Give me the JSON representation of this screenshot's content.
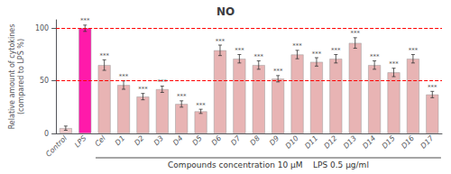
{
  "chart_data": {
    "type": "bar",
    "title": "NO",
    "xlabel": "Compounds concentration 10 μM    LPS 0.5 μg/ml",
    "ylabel": "Relative amount of cytokines\n(compared to LPS %)",
    "categories": [
      "Control",
      "LPS",
      "Cel",
      "D1",
      "D2",
      "D3",
      "D4",
      "D5",
      "D6",
      "D7",
      "D8",
      "D9",
      "D10",
      "D11",
      "D12",
      "D13",
      "D14",
      "D15",
      "D16",
      "D17"
    ],
    "values": [
      5,
      100,
      65,
      46,
      35,
      42,
      28,
      21,
      79,
      71,
      65,
      52,
      75,
      68,
      71,
      86,
      65,
      58,
      71,
      37
    ],
    "errors": [
      2,
      3,
      5,
      4,
      3,
      3,
      3,
      2,
      5,
      4,
      4,
      3,
      4,
      4,
      4,
      5,
      4,
      4,
      4,
      3
    ],
    "colors": [
      "#eec8c8",
      "#ff1aaa",
      "#e8b4b4",
      "#e8b4b4",
      "#e8b4b4",
      "#e8b4b4",
      "#e8b4b4",
      "#e8b4b4",
      "#e8b4b4",
      "#e8b4b4",
      "#e8b4b4",
      "#e8b4b4",
      "#e8b4b4",
      "#e8b4b4",
      "#e8b4b4",
      "#e8b4b4",
      "#e8b4b4",
      "#e8b4b4",
      "#e8b4b4",
      "#e8b4b4"
    ],
    "annotations": [
      {
        "category": "LPS",
        "text": "***"
      },
      {
        "category": "Cel",
        "text": "***"
      },
      {
        "category": "D1",
        "text": "***"
      },
      {
        "category": "D2",
        "text": "***"
      },
      {
        "category": "D3",
        "text": "***"
      },
      {
        "category": "D4",
        "text": "***"
      },
      {
        "category": "D5",
        "text": "***"
      },
      {
        "category": "D6",
        "text": "***"
      },
      {
        "category": "D7",
        "text": "***"
      },
      {
        "category": "D8",
        "text": "***"
      },
      {
        "category": "D9",
        "text": "***"
      },
      {
        "category": "D10",
        "text": "***"
      },
      {
        "category": "D11",
        "text": "***"
      },
      {
        "category": "D12",
        "text": "***"
      },
      {
        "category": "D13",
        "text": "***"
      },
      {
        "category": "D14",
        "text": "***"
      },
      {
        "category": "D15",
        "text": "***"
      },
      {
        "category": "D16",
        "text": "***"
      },
      {
        "category": "D17",
        "text": "***"
      }
    ],
    "hlines": [
      {
        "y": 100,
        "color": "#ff0000",
        "line_style": "dashed"
      },
      {
        "y": 50,
        "color": "#ff0000",
        "line_style": "dashed"
      }
    ],
    "bracket": [
      "Cel",
      "D17"
    ],
    "ylim": [
      0,
      108
    ],
    "yticks": [
      0,
      50,
      100
    ],
    "grid": false
  }
}
